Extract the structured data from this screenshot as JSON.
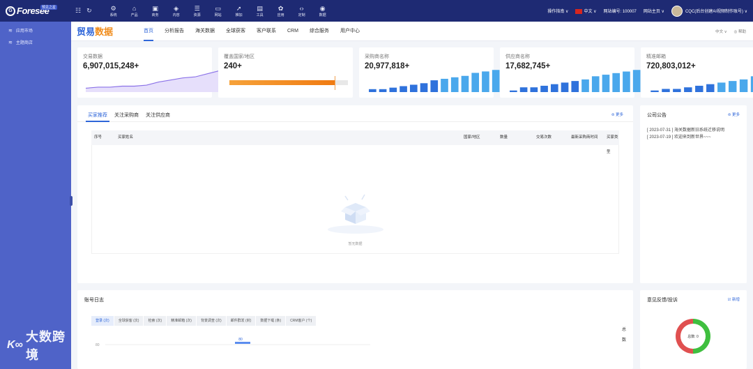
{
  "topbar": {
    "logo_text": "Foresee",
    "logo_badge": "预见之星",
    "nav": [
      {
        "label": "系统",
        "icon": "gear-icon",
        "glyph": "⚙"
      },
      {
        "label": "产品",
        "icon": "shop-icon",
        "glyph": "⌂"
      },
      {
        "label": "商务",
        "icon": "briefcase-icon",
        "glyph": "▣"
      },
      {
        "label": "内容",
        "icon": "cube-icon",
        "glyph": "◈"
      },
      {
        "label": "资源",
        "icon": "stack-icon",
        "glyph": "☰"
      },
      {
        "label": "网站",
        "icon": "monitor-icon",
        "glyph": "▭"
      },
      {
        "label": "推加",
        "icon": "rocket-icon",
        "glyph": "➚"
      },
      {
        "label": "工具",
        "icon": "toolbox-icon",
        "glyph": "▤"
      },
      {
        "label": "应用",
        "icon": "apps-icon",
        "glyph": "✿"
      },
      {
        "label": "定制",
        "icon": "code-icon",
        "glyph": "‹›"
      },
      {
        "label": "数据",
        "icon": "globe-icon",
        "glyph": "◉"
      }
    ],
    "help": "操作指南 ∨",
    "language": "中文 ∨",
    "site_number": "网站编号: 100007",
    "site_home": "网站主页 ∨",
    "user": "CQC(后台创建AI视频制作账号) ∨"
  },
  "sidebar": {
    "items": [
      {
        "label": "应用市场",
        "icon": "wifi-icon"
      },
      {
        "label": "主题商店",
        "icon": "wifi-icon"
      }
    ],
    "watermark": "大数跨境"
  },
  "subheader": {
    "brand_part1": "贸易",
    "brand_part2": "数据",
    "tabs": [
      "首页",
      "分析报告",
      "海关数据",
      "全球获客",
      "客户联系",
      "CRM",
      "综合服务",
      "用户中心"
    ],
    "active_tab": "首页",
    "language": "中文 ∨",
    "help": "◎ 帮助"
  },
  "stats": [
    {
      "label": "交易数据",
      "value": "6,907,015,248+",
      "chart": "area",
      "color": "#8b72e8",
      "series": [
        3,
        4,
        4,
        5,
        5,
        6,
        9,
        11,
        13,
        14,
        17,
        20
      ]
    },
    {
      "label": "覆盖国家/地区",
      "value": "240+",
      "chart": "progress",
      "color": "#f28a1e",
      "progress": 0.89
    },
    {
      "label": "采购商名称",
      "value": "20,977,818+",
      "chart": "bars",
      "color": "#2f7fe0",
      "series": [
        2,
        2,
        3,
        4,
        5,
        6,
        8,
        9,
        10,
        11,
        13,
        14,
        15
      ]
    },
    {
      "label": "供应商名称",
      "value": "17,682,745+",
      "chart": "bars",
      "color": "#2f7fe0",
      "series": [
        1,
        3,
        3,
        4,
        5,
        6,
        7,
        8,
        10,
        11,
        12,
        13,
        14
      ]
    },
    {
      "label": "精准邮箱",
      "value": "720,803,012+",
      "chart": "bars",
      "color": "#2f7fe0",
      "series": [
        1,
        2,
        2,
        3,
        4,
        5,
        6,
        7,
        8,
        10,
        12,
        14
      ]
    }
  ],
  "main_panel": {
    "tabs": [
      "买家推荐",
      "关注采购商",
      "关注供应商"
    ],
    "active_tab": "买家推荐",
    "more": "⊜ 更多",
    "columns": [
      "序号",
      "买家姓名",
      "国家/地区",
      "数量",
      "交易次数",
      "最新采购商时间",
      "买家类型"
    ],
    "empty_text": "暂无数据"
  },
  "notice_panel": {
    "title": "公司公告",
    "more": "⊜ 更多",
    "items": [
      "[ 2023-07-31 ] 海关数据新旧系统迁移说明",
      "[ 2023-07-19 ] 欢迎来到新世界~~~"
    ]
  },
  "log_panel": {
    "title": "账号日志",
    "tabs": [
      "登录 (次)",
      "全球获客 (次)",
      "检索 (次)",
      "精准邮箱 (次)",
      "背景调查 (次)",
      "邮件群发 (封)",
      "数据下载 (条)",
      "CRM客户 (个)"
    ],
    "active_tab": "登录 (次)",
    "y_tick": "80",
    "peak_label": "80",
    "side_label": [
      "总",
      "数"
    ]
  },
  "feedback_panel": {
    "title": "意见反馈/投诉",
    "new_button": "☑ 新增",
    "donut_label": "总数: 0"
  }
}
